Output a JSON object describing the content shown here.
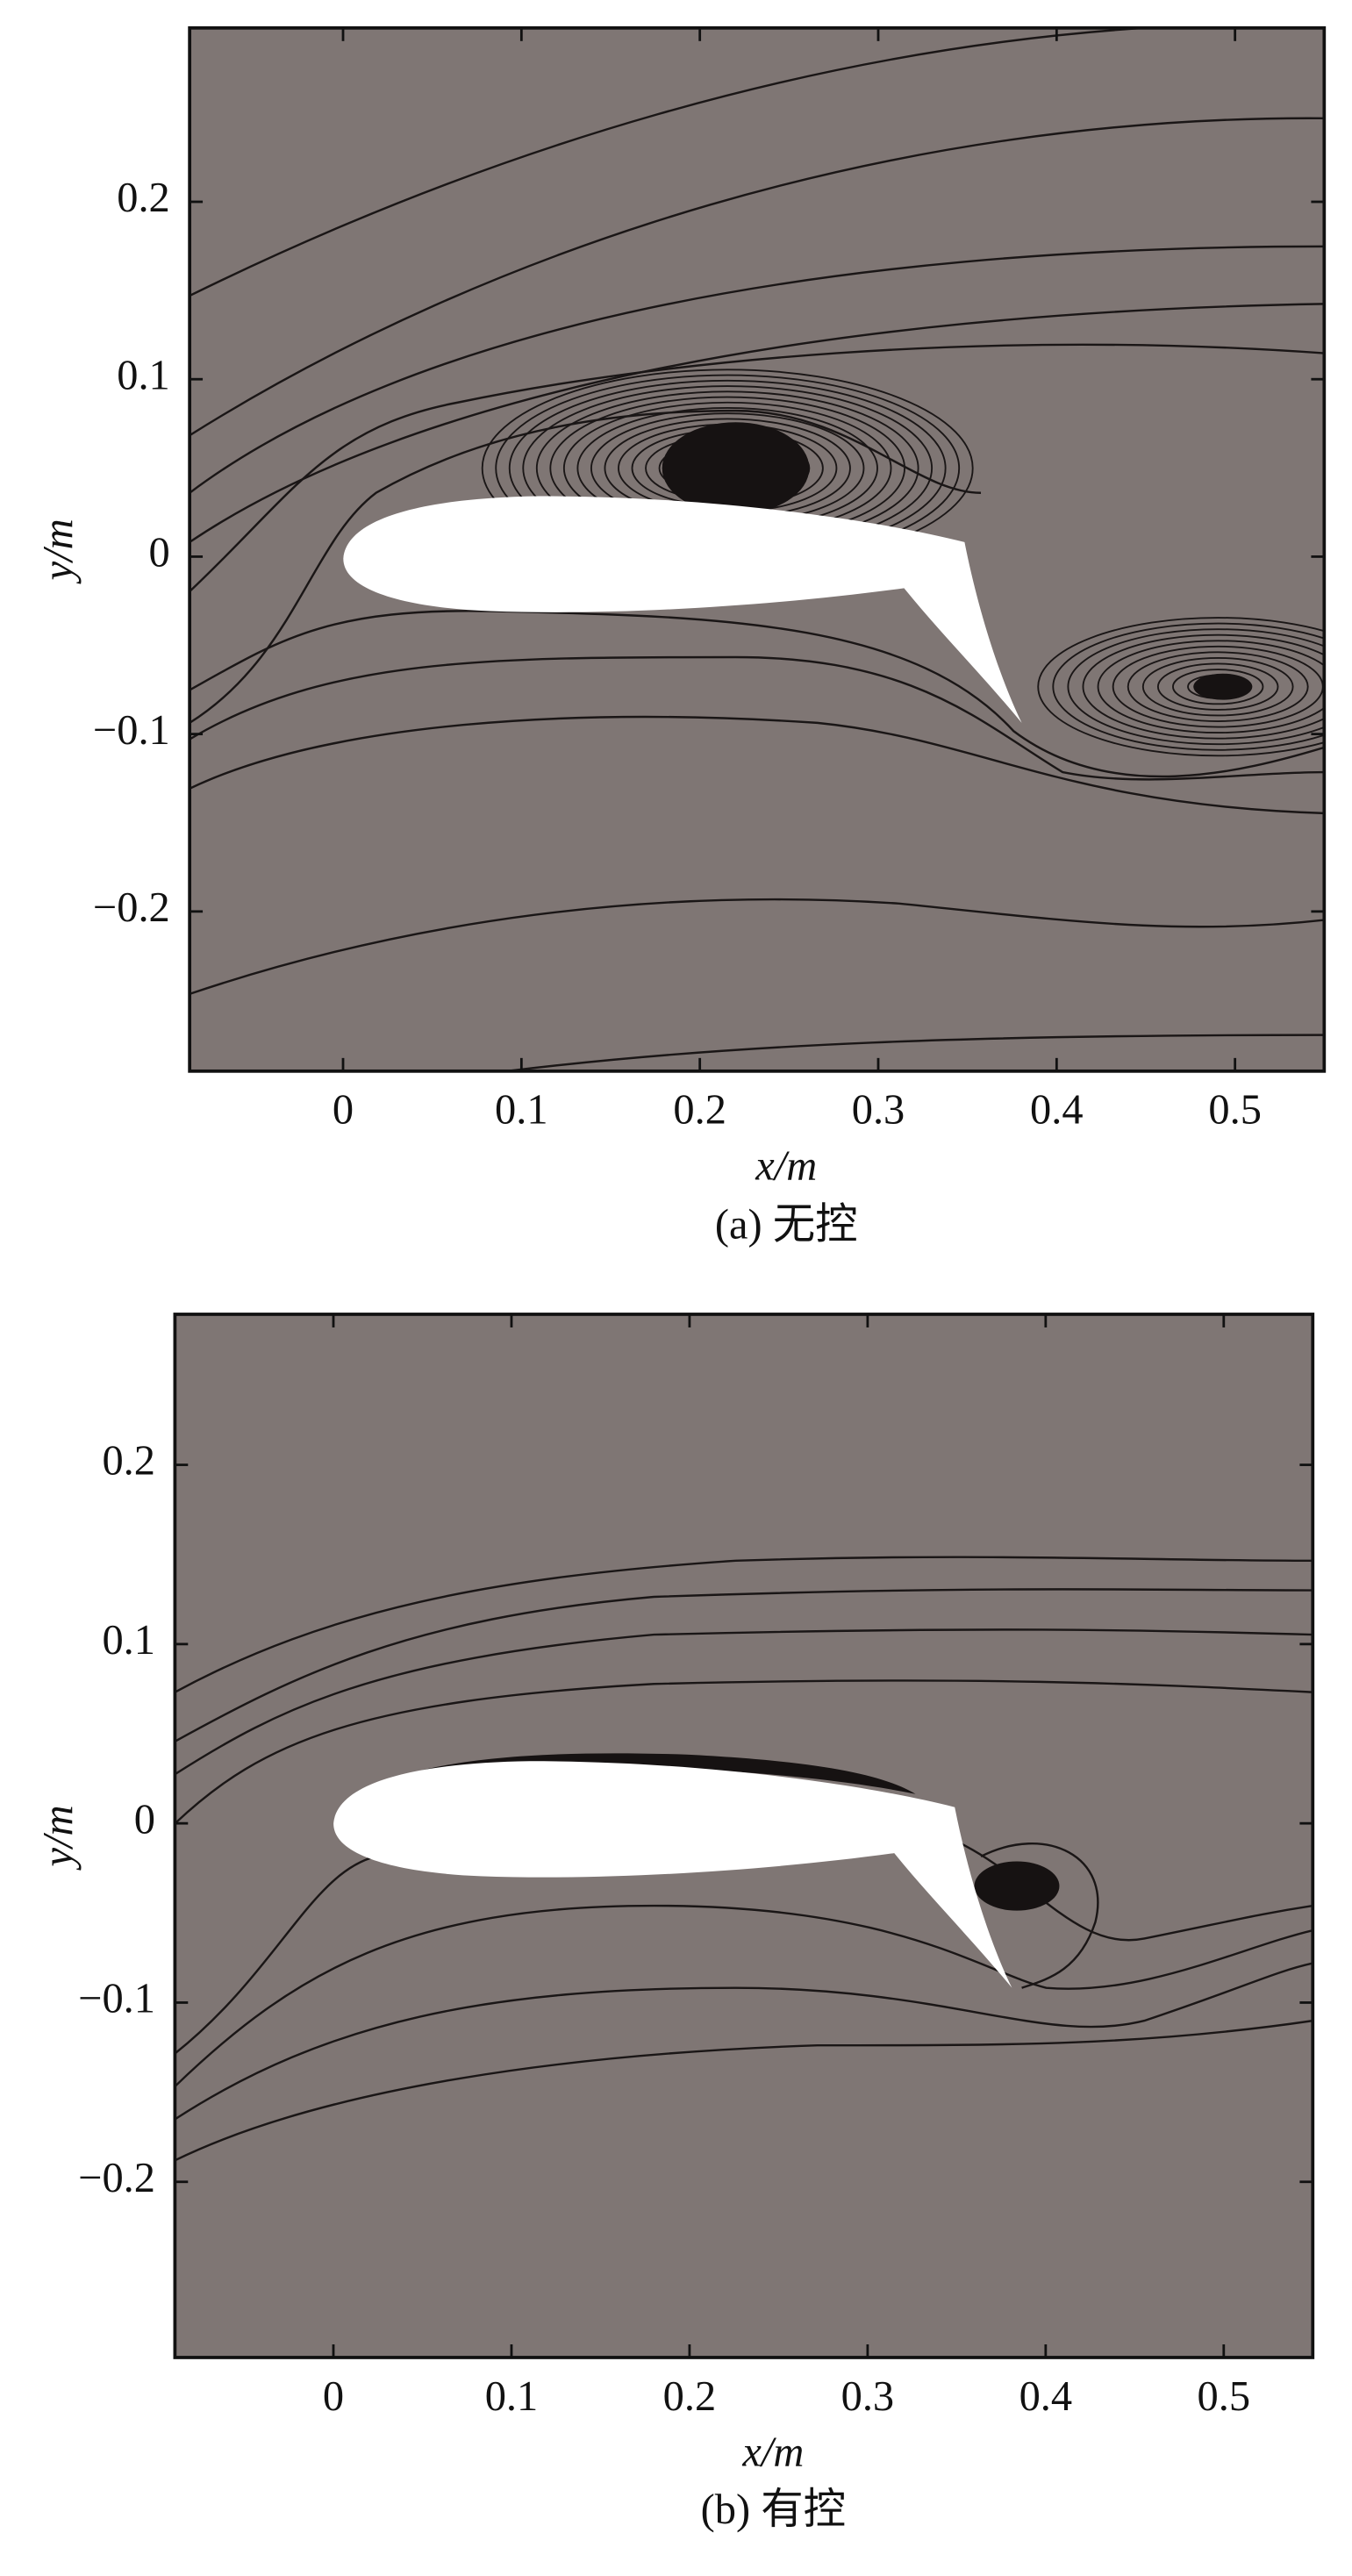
{
  "chart_data": [
    {
      "type": "streamline",
      "caption": "(a) 无控",
      "xlabel": "x/m",
      "ylabel": "y/m",
      "xlim": [
        -0.086,
        0.55
      ],
      "ylim": [
        -0.29,
        0.298
      ],
      "xticks": [
        0,
        0.1,
        0.2,
        0.3,
        0.4,
        0.5
      ],
      "yticks": [
        {
          "value": -0.2,
          "label": "−0.2"
        },
        {
          "value": -0.1,
          "label": "−0.1"
        },
        0,
        0.1,
        0.2
      ],
      "background": "#7f7674",
      "line_color": "#1a1616"
    },
    {
      "type": "streamline",
      "caption": "(b) 有控",
      "xlabel": "x/m",
      "ylabel": "y/m",
      "xlim": [
        -0.089,
        0.55
      ],
      "ylim": [
        -0.298,
        0.284
      ],
      "xticks": [
        0,
        0.1,
        0.2,
        0.3,
        0.4,
        0.5
      ],
      "yticks": [
        {
          "value": -0.2,
          "label": "−0.2"
        },
        {
          "value": -0.1,
          "label": "−0.1"
        },
        0,
        0.1,
        0.2
      ],
      "background": "#7f7674",
      "line_color": "#1a1616"
    }
  ]
}
